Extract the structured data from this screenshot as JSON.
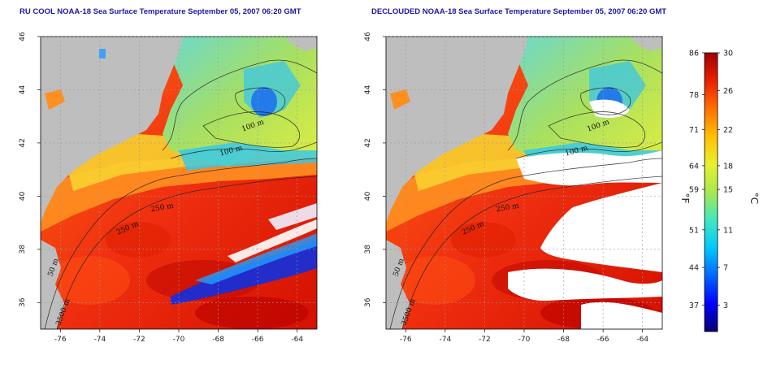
{
  "titles": {
    "left": "RU COOL NOAA-18 Sea Surface Temperature September 05, 2007 06:20 GMT",
    "right": "DECLOUDED NOAA-18 Sea Surface Temperature September 05, 2007 06:20 GMT"
  },
  "axes": {
    "lon_ticks": [
      "-76",
      "-74",
      "-72",
      "-70",
      "-68",
      "-66",
      "-64"
    ],
    "lat_ticks": [
      "36",
      "38",
      "40",
      "42",
      "44",
      "46"
    ]
  },
  "contour_labels": [
    "100 m",
    "100 m",
    "250 m",
    "250 m",
    "50 m",
    "3500 m"
  ],
  "colorbar": {
    "fahrenheit_ticks": [
      "86",
      "78",
      "71",
      "64",
      "59",
      "51",
      "44",
      "37"
    ],
    "celsius_ticks": [
      "30",
      "26",
      "22",
      "18",
      "15",
      "11",
      "7",
      "3"
    ],
    "fahrenheit_unit": "°F",
    "celsius_unit": "°C",
    "scale_colors": [
      "#08006e",
      "#0000ff",
      "#0066ff",
      "#00c8ff",
      "#40e8c0",
      "#a8e850",
      "#e8f030",
      "#ffc000",
      "#ff7000",
      "#e82000",
      "#a00000"
    ]
  },
  "colors": {
    "land": "#bebebe",
    "cloud_cleared": "#ffffff",
    "title": "#1a1aa6"
  }
}
